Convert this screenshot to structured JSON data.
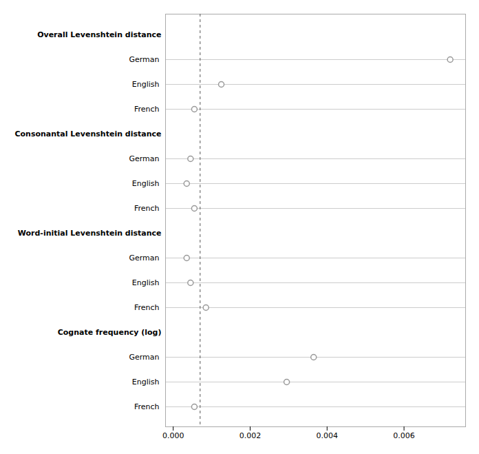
{
  "chart_data": {
    "type": "dot",
    "groups": [
      {
        "label": "Overall Levenshtein distance",
        "categories": [
          "German",
          "English",
          "French"
        ],
        "values": [
          0.0072,
          0.00125,
          0.00055
        ]
      },
      {
        "label": "Consonantal Levenshtein distance",
        "categories": [
          "German",
          "English",
          "French"
        ],
        "values": [
          0.00045,
          0.00035,
          0.00055
        ]
      },
      {
        "label": "Word-initial Levenshtein distance",
        "categories": [
          "German",
          "English",
          "French"
        ],
        "values": [
          0.00035,
          0.00045,
          0.00085
        ]
      },
      {
        "label": "Cognate frequency (log)",
        "categories": [
          "German",
          "English",
          "French"
        ],
        "values": [
          0.00365,
          0.00295,
          0.00055
        ]
      }
    ],
    "reference_line": 0.0007,
    "xlim": [
      -0.0002,
      0.0076
    ],
    "xticks": [
      {
        "value": 0,
        "label": "0.000"
      },
      0.002,
      0.004,
      0.006
    ],
    "grid": true
  }
}
